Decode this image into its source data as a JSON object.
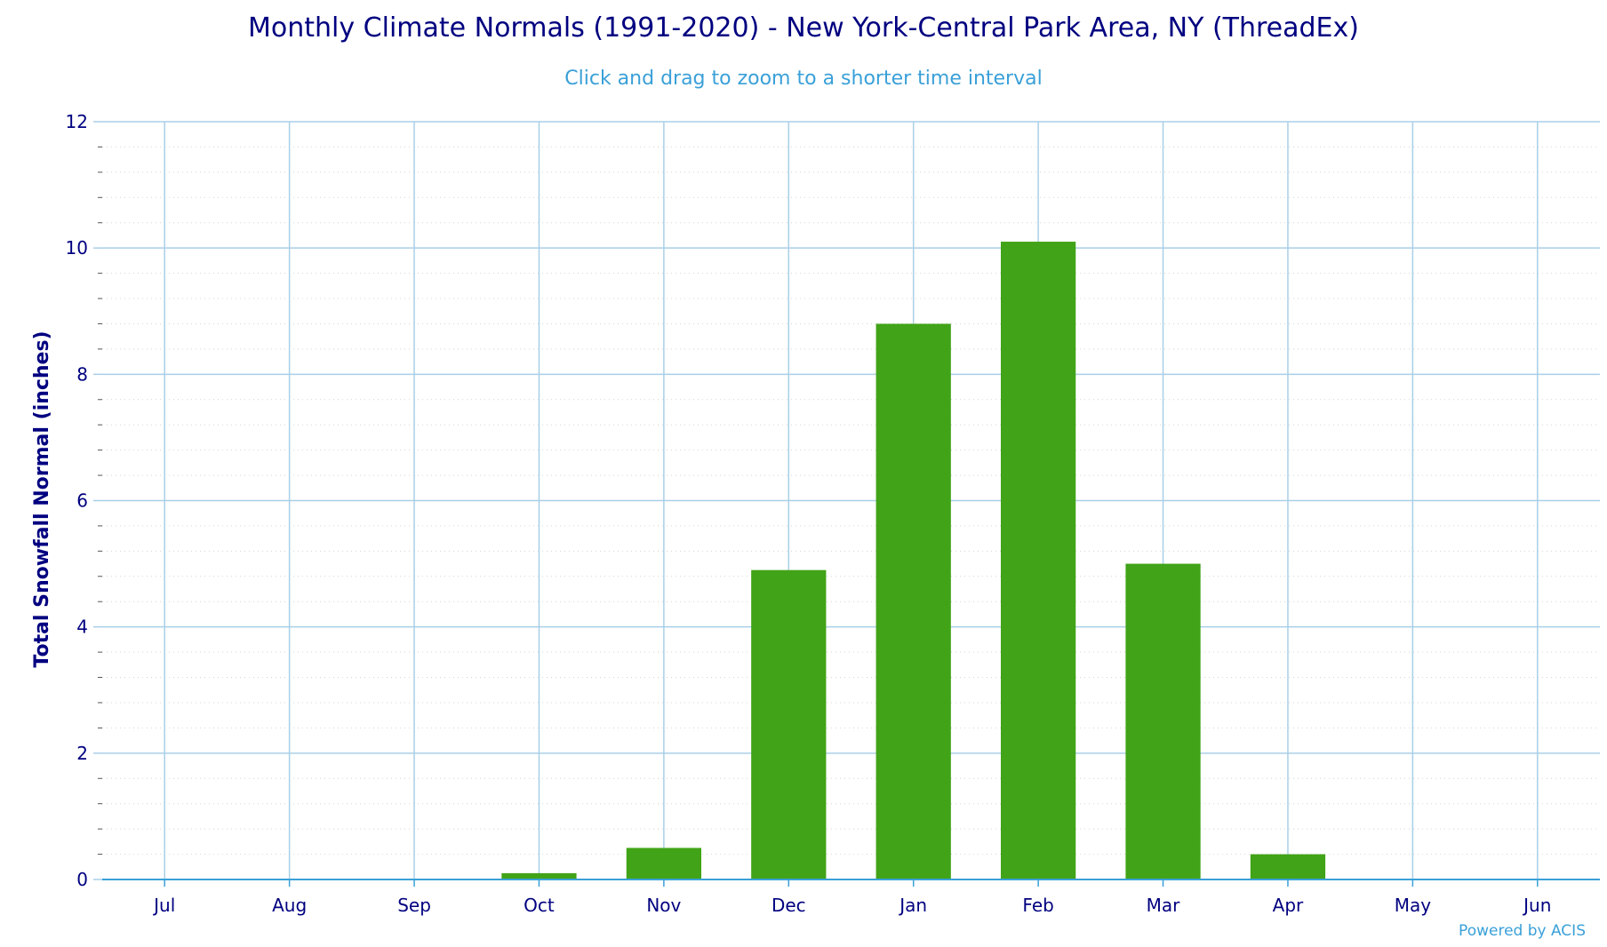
{
  "chart_data": {
    "type": "bar",
    "title": "Monthly Climate Normals (1991-2020) - New York-Central Park Area, NY (ThreadEx)",
    "subtitle": "Click and drag to zoom to a shorter time interval",
    "ylabel": "Total Snowfall Normal (inches)",
    "xlabel": "",
    "categories": [
      "Jul",
      "Aug",
      "Sep",
      "Oct",
      "Nov",
      "Dec",
      "Jan",
      "Feb",
      "Mar",
      "Apr",
      "May",
      "Jun"
    ],
    "values": [
      0,
      0,
      0,
      0.1,
      0.5,
      4.9,
      8.8,
      10.1,
      5.0,
      0.4,
      0,
      0
    ],
    "ylim": [
      0,
      12
    ],
    "yticks": [
      "0",
      "2",
      "4",
      "6",
      "8",
      "10",
      "12"
    ],
    "grid": true,
    "legend": "none",
    "bar_color": "#41a317",
    "credit": "Powered by ACIS"
  }
}
